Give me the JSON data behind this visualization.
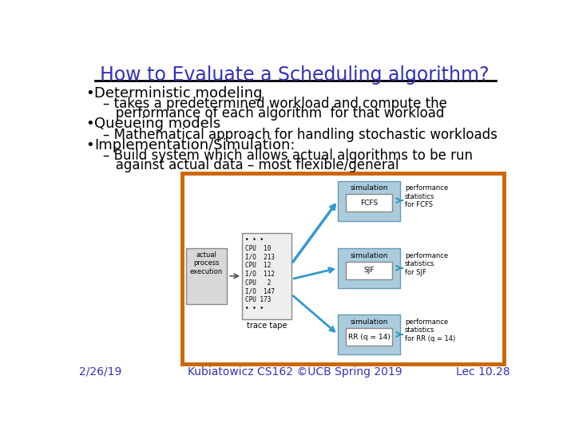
{
  "title": "How to Evaluate a Scheduling algorithm?",
  "title_color": "#3333bb",
  "title_fontsize": 17,
  "bg_color": "#ffffff",
  "bullet1_main": "Deterministic modeling",
  "bullet1_sub1": "– takes a predetermined workload and compute the",
  "bullet1_sub2": "   performance of each algorithm  for that workload",
  "bullet2_main": "Queueing models",
  "bullet2_sub1": "– Mathematical approach for handling stochastic workloads",
  "bullet3_main": "Implementation/Simulation:",
  "bullet3_sub1": "– Build system which allows actual algorithms to be run",
  "bullet3_sub2": "   against actual data – most flexible/general",
  "footer_left": "2/26/19",
  "footer_center": "Kubiatowicz CS162 ©UCB Spring 2019",
  "footer_right": "Lec 10.28",
  "footer_color": "#3333bb",
  "text_color": "#000000",
  "box_border_color": "#cc6600",
  "sim_fill_color": "#aaccdd",
  "main_fontsize": 13,
  "sub_fontsize": 12,
  "footer_fontsize": 10,
  "trace_lines": [
    "• • •",
    "CPU  10",
    "I/O  213",
    "CPU  12",
    "I/O  112",
    "CPU   2",
    "I/O  147",
    "CPU 173",
    "• • •"
  ]
}
